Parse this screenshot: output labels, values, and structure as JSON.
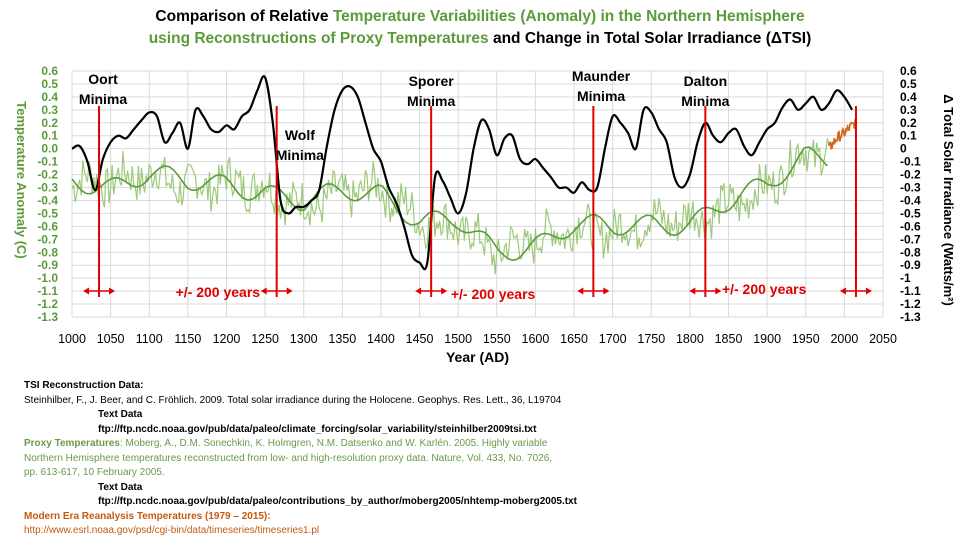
{
  "title": {
    "l1_a": "Comparison of Relative ",
    "l1_b": "Temperature Variabilities (Anomaly) in the Northern Hemisphere",
    "l2_a": "using Reconstructions of Proxy Temperatures",
    "l2_b": " and Change in Total Solar Irradiance (ΔTSI)"
  },
  "colors": {
    "tsi": "#000000",
    "proxy": "#5b9b3a",
    "proxy_light": "#9cc97a",
    "modern": "#d2691e",
    "marker": "#e00000",
    "grid": "#d9d9d9"
  },
  "chart_data": {
    "type": "line",
    "xlabel": "Year (AD)",
    "ylabel_left": "Temperature Anomaly (C)",
    "ylabel_right": "Δ Total Solar Irradiance (Watts/m²)",
    "xlim": [
      1000,
      2050
    ],
    "ylim": [
      -1.3,
      0.6
    ],
    "x_ticks": [
      1000,
      1050,
      1100,
      1150,
      1200,
      1250,
      1300,
      1350,
      1400,
      1450,
      1500,
      1550,
      1600,
      1650,
      1700,
      1750,
      1800,
      1850,
      1900,
      1950,
      2000,
      2050
    ],
    "y_ticks": [
      "0.6",
      "0.5",
      "0.4",
      "0.3",
      "0.2",
      "0.1",
      "0.0",
      "-0.1",
      "-0.2",
      "-0.3",
      "-0.4",
      "-0.5",
      "-0.6",
      "-0.7",
      "-0.8",
      "-0.9",
      "-1.0",
      "-1.1",
      "-1.2",
      "-1.3"
    ],
    "y_ticks_right": [
      "0.6",
      "0.5",
      "0.4",
      "0.3",
      "0.2",
      "0.1",
      "0",
      "-0.1",
      "-0.2",
      "-0.3",
      "-0.4",
      "-0.5",
      "-0.6",
      "-0.7",
      "-0.8",
      "-0.9",
      "-1",
      "-1.1",
      "-1.2",
      "-1.3"
    ],
    "grid": true,
    "series": [
      {
        "key": "tsi",
        "x": [
          1000,
          1010,
          1020,
          1030,
          1040,
          1050,
          1060,
          1070,
          1080,
          1090,
          1100,
          1110,
          1120,
          1130,
          1140,
          1150,
          1160,
          1170,
          1180,
          1190,
          1200,
          1210,
          1220,
          1230,
          1240,
          1250,
          1260,
          1270,
          1280,
          1290,
          1300,
          1310,
          1320,
          1330,
          1340,
          1350,
          1360,
          1370,
          1380,
          1390,
          1400,
          1410,
          1420,
          1430,
          1440,
          1450,
          1460,
          1470,
          1480,
          1490,
          1500,
          1510,
          1520,
          1530,
          1540,
          1550,
          1560,
          1570,
          1580,
          1590,
          1600,
          1610,
          1620,
          1630,
          1640,
          1650,
          1660,
          1670,
          1680,
          1690,
          1700,
          1710,
          1720,
          1730,
          1740,
          1750,
          1760,
          1770,
          1780,
          1790,
          1800,
          1810,
          1820,
          1830,
          1840,
          1850,
          1860,
          1870,
          1880,
          1890,
          1900,
          1910,
          1920,
          1930,
          1940,
          1950,
          1960,
          1970,
          1980,
          1990,
          2000,
          2010
        ],
        "y": [
          0.0,
          0.02,
          -0.1,
          -0.32,
          -0.08,
          0.05,
          0.1,
          0.08,
          0.15,
          0.22,
          0.28,
          0.25,
          0.05,
          0.12,
          0.2,
          0.0,
          0.3,
          0.25,
          0.15,
          0.13,
          0.18,
          0.15,
          0.25,
          0.3,
          0.45,
          0.55,
          0.2,
          -0.4,
          -0.5,
          -0.45,
          -0.45,
          -0.4,
          -0.32,
          0.02,
          0.3,
          0.45,
          0.48,
          0.4,
          0.2,
          0.0,
          -0.1,
          -0.3,
          -0.42,
          -0.6,
          -0.82,
          -0.88,
          -0.88,
          -0.22,
          -0.25,
          -0.38,
          -0.5,
          -0.35,
          0.0,
          0.22,
          0.15,
          -0.05,
          0.08,
          0.1,
          -0.08,
          -0.12,
          -0.08,
          -0.15,
          -0.22,
          -0.3,
          -0.3,
          -0.34,
          -0.26,
          -0.32,
          -0.3,
          0.0,
          0.25,
          0.2,
          0.12,
          0.0,
          0.3,
          0.28,
          0.15,
          0.05,
          -0.22,
          -0.3,
          -0.2,
          0.05,
          0.2,
          0.1,
          0.05,
          0.12,
          0.15,
          0.02,
          -0.05,
          0.05,
          0.15,
          0.2,
          0.32,
          0.38,
          0.3,
          0.35,
          0.4,
          0.3,
          0.35,
          0.45,
          0.4,
          0.3
        ]
      },
      {
        "key": "proxy",
        "x": [
          1000,
          1050,
          1100,
          1150,
          1200,
          1250,
          1300,
          1350,
          1400,
          1450,
          1500,
          1550,
          1600,
          1650,
          1700,
          1750,
          1800,
          1850,
          1900,
          1950,
          1980
        ],
        "y": [
          -0.25,
          -0.25,
          -0.2,
          -0.3,
          -0.25,
          -0.3,
          -0.45,
          -0.35,
          -0.3,
          -0.55,
          -0.6,
          -0.8,
          -0.7,
          -0.6,
          -0.65,
          -0.55,
          -0.55,
          -0.45,
          -0.3,
          0.0,
          -0.05
        ]
      },
      {
        "key": "modern",
        "x": [
          1980,
          1990,
          2000,
          2010,
          2015
        ],
        "y": [
          0.0,
          0.08,
          0.12,
          0.18,
          0.2
        ]
      }
    ],
    "markers": [
      1035,
      1265,
      1465,
      1675,
      1820,
      2015
    ],
    "annotations": [
      {
        "text": "Oort",
        "x": 1035
      },
      {
        "text": "Minima",
        "x": 1035
      },
      {
        "text": "Wolf",
        "x": 1295
      },
      {
        "text": "Minima",
        "x": 1295
      },
      {
        "text": "Sporer",
        "x": 1465
      },
      {
        "text": "Minima",
        "x": 1465
      },
      {
        "text": "Maunder",
        "x": 1685
      },
      {
        "text": "Minima",
        "x": 1685
      },
      {
        "text": "Dalton",
        "x": 1820
      },
      {
        "text": "Minima",
        "x": 1820
      }
    ],
    "range_labels": [
      "+/- 200 years",
      "+/- 200 years",
      "+/- 200 years"
    ]
  },
  "refs": {
    "tsi_head": "TSI Reconstruction Data:",
    "tsi_cite": "Steinhilber, F., J. Beer, and C. Fröhlich. 2009. Total solar irradiance during the Holocene. Geophys. Res. Lett., 36, L19704",
    "tsi_text_data": "Text Data",
    "tsi_url": "ftp://ftp.ncdc.noaa.gov/pub/data/paleo/climate_forcing/solar_variability/steinhilber2009tsi.txt",
    "proxy_head": "Proxy Temperatures",
    "proxy_cite1": ": Moberg, A., D.M. Sonechkin, K. Holmgren, N.M. Datsenko and W. Karlén. 2005. Highly variable",
    "proxy_cite2": "Northern Hemisphere temperatures reconstructed from low- and high-resolution proxy data. Nature, Vol. 433, No. 7026,",
    "proxy_cite3": "pp. 613-617, 10 February 2005.",
    "proxy_text_data": "Text Data",
    "proxy_url": "ftp://ftp.ncdc.noaa.gov/pub/data/paleo/contributions_by_author/moberg2005/nhtemp-moberg2005.txt",
    "modern_head": "Modern Era Reanalysis Temperatures (1979 – 2015):",
    "modern_url": "http://www.esrl.noaa.gov/psd/cgi-bin/data/timeseries/timeseries1.pl"
  }
}
